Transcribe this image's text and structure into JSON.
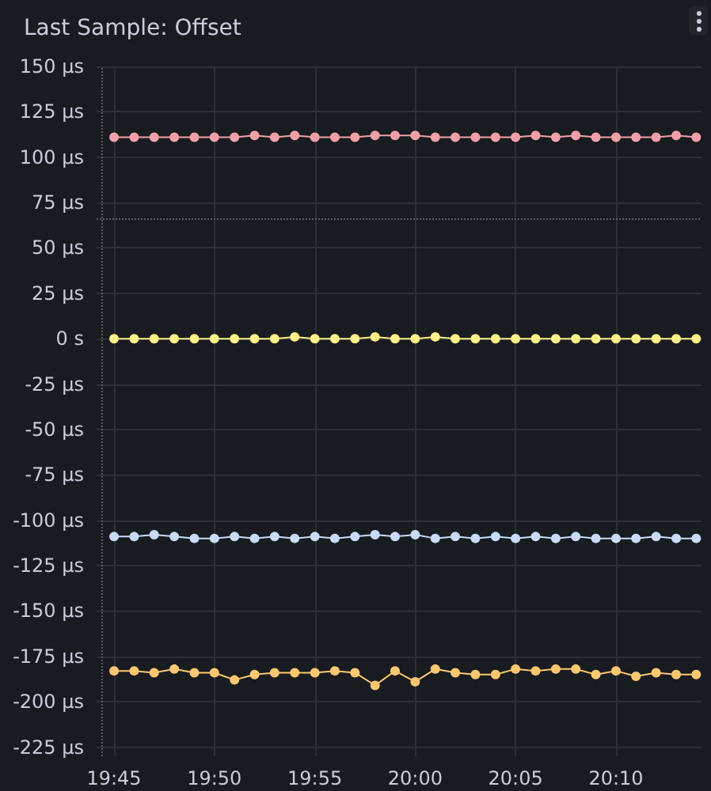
{
  "chart_data": {
    "type": "line",
    "title": "Last Sample: Offset",
    "x": [
      19.75,
      19.7667,
      19.7833,
      19.8,
      19.8167,
      19.8333,
      19.85,
      19.8667,
      19.8833,
      19.9,
      19.9167,
      19.9333,
      19.95,
      19.9667,
      19.9833,
      20.0,
      20.0167,
      20.0333,
      20.05,
      20.0667,
      20.0833,
      20.1,
      20.1167,
      20.1333,
      20.15,
      20.1667,
      20.1833,
      20.2,
      20.2167,
      20.2333
    ],
    "series": [
      {
        "color": "#f2a0a8",
        "values": [
          111,
          111,
          111,
          111,
          111,
          111,
          111,
          112,
          111,
          112,
          111,
          111,
          111,
          112,
          112,
          112,
          111,
          111,
          111,
          111,
          111,
          112,
          111,
          112,
          111,
          111,
          111,
          111,
          112,
          111
        ]
      },
      {
        "color": "#fff089",
        "values": [
          0,
          0,
          0,
          0,
          0,
          0,
          0,
          0,
          0,
          1,
          0,
          0,
          0,
          1,
          0,
          0,
          1,
          0,
          0,
          0,
          0,
          0,
          0,
          0,
          0,
          0,
          0,
          0,
          0,
          0
        ]
      },
      {
        "color": "#c8dcfa",
        "values": [
          -109,
          -109,
          -108,
          -109,
          -110,
          -110,
          -109,
          -110,
          -109,
          -110,
          -109,
          -110,
          -109,
          -108,
          -109,
          -108,
          -110,
          -109,
          -110,
          -109,
          -110,
          -109,
          -110,
          -109,
          -110,
          -110,
          -110,
          -109,
          -110,
          -110
        ]
      },
      {
        "color": "#ffc870",
        "values": [
          -183,
          -183,
          -184,
          -182,
          -184,
          -184,
          -188,
          -185,
          -184,
          -184,
          -184,
          -183,
          -184,
          -191,
          -183,
          -189,
          -182,
          -184,
          -185,
          -185,
          -182,
          -183,
          -182,
          -182,
          -185,
          -183,
          -186,
          -184,
          -185,
          -185
        ]
      }
    ],
    "xlim": [
      19.7355,
      20.2377
    ],
    "xticks": [
      {
        "value": 19.75,
        "label": "19:45"
      },
      {
        "value": 19.8333,
        "label": "19:50"
      },
      {
        "value": 19.9167,
        "label": "19:55"
      },
      {
        "value": 20.0,
        "label": "20:00"
      },
      {
        "value": 20.0833,
        "label": "20:05"
      },
      {
        "value": 20.1667,
        "label": "20:10"
      }
    ],
    "ylim": [
      -230,
      150
    ],
    "yticks": [
      {
        "value": -225,
        "label": "-225 µs"
      },
      {
        "value": -200,
        "label": "-200 µs"
      },
      {
        "value": -175,
        "label": "-175 µs"
      },
      {
        "value": -150,
        "label": "-150 µs"
      },
      {
        "value": -125,
        "label": "-125 µs"
      },
      {
        "value": -100,
        "label": "-100 µs"
      },
      {
        "value": -75,
        "label": "-75 µs"
      },
      {
        "value": -50,
        "label": "-50 µs"
      },
      {
        "value": -25,
        "label": "-25 µs"
      },
      {
        "value": 0,
        "label": "0 s"
      },
      {
        "value": 25,
        "label": "25 µs"
      },
      {
        "value": 50,
        "label": "50 µs"
      },
      {
        "value": 75,
        "label": "75 µs"
      },
      {
        "value": 100,
        "label": "100 µs"
      },
      {
        "value": 125,
        "label": "125 µs"
      },
      {
        "value": 150,
        "label": "150 µs"
      }
    ],
    "ref_lines": [
      {
        "axis": "y",
        "value": 66,
        "color": "#5a5d63",
        "line_style": "dotted"
      },
      {
        "axis": "x",
        "value": 19.74,
        "color": "#5a5d63",
        "line_style": "dotted"
      }
    ],
    "grid": true,
    "marker": "circle",
    "line_style": "solid"
  }
}
